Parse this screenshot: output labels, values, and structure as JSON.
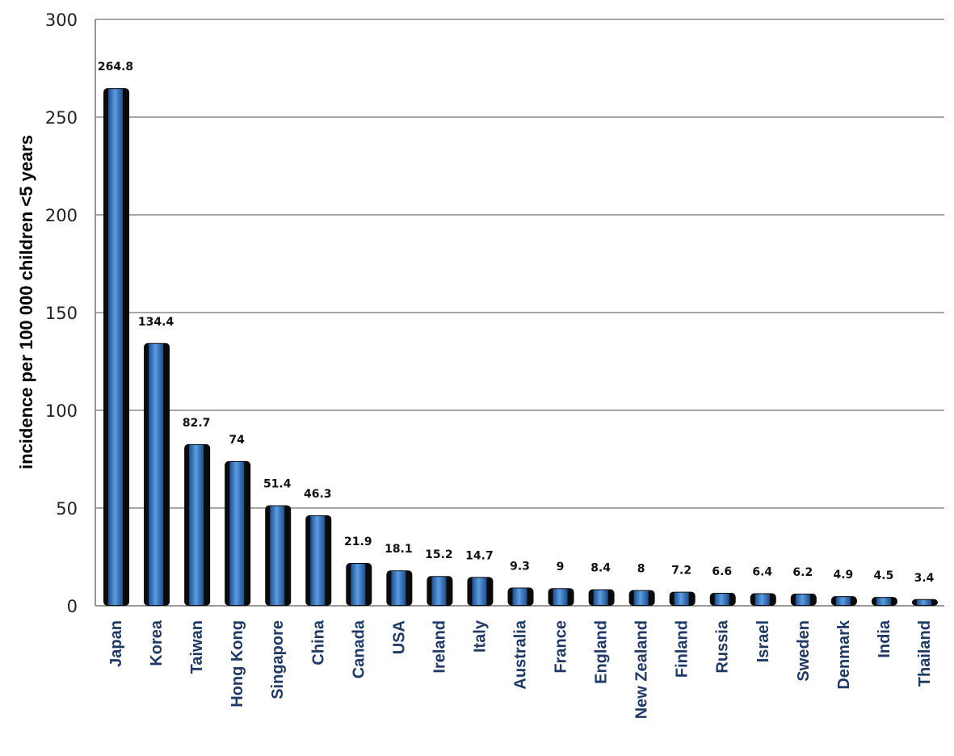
{
  "chart_data": {
    "type": "bar",
    "title": "",
    "xlabel": "",
    "ylabel": "incidence per 100 000 children <5 years",
    "ylim": [
      0,
      300
    ],
    "yticks": [
      0,
      50,
      100,
      150,
      200,
      250,
      300
    ],
    "grid": true,
    "categories": [
      "Japan",
      "Korea",
      "Taiwan",
      "Hong Kong",
      "Singapore",
      "China",
      "Canada",
      "USA",
      "Ireland",
      "Italy",
      "Australia",
      "France",
      "England",
      "New Zealand",
      "Finland",
      "Russia",
      "Israel",
      "Sweden",
      "Denmark",
      "India",
      "Thailand"
    ],
    "values": [
      264.8,
      134.4,
      82.7,
      74,
      51.4,
      46.3,
      21.9,
      18.1,
      15.2,
      14.7,
      9.3,
      9,
      8.4,
      8,
      7.2,
      6.6,
      6.4,
      6.2,
      4.9,
      4.5,
      3.4
    ],
    "data_labels": [
      "264.8",
      "134.4",
      "82.7",
      "74",
      "51.4",
      "46.3",
      "21.9",
      "18.1",
      "15.2",
      "14.7",
      "9.3",
      "9",
      "8.4",
      "8",
      "7.2",
      "6.6",
      "6.4",
      "6.2",
      "4.9",
      "4.5",
      "3.4"
    ],
    "colors": {
      "bar_fill": "#2f6cb5",
      "bar_highlight": "#5a9be0",
      "bar_shadow": "#0a0a0a",
      "category_text": "#1f3a66",
      "grid": "#8a8a8a"
    }
  }
}
